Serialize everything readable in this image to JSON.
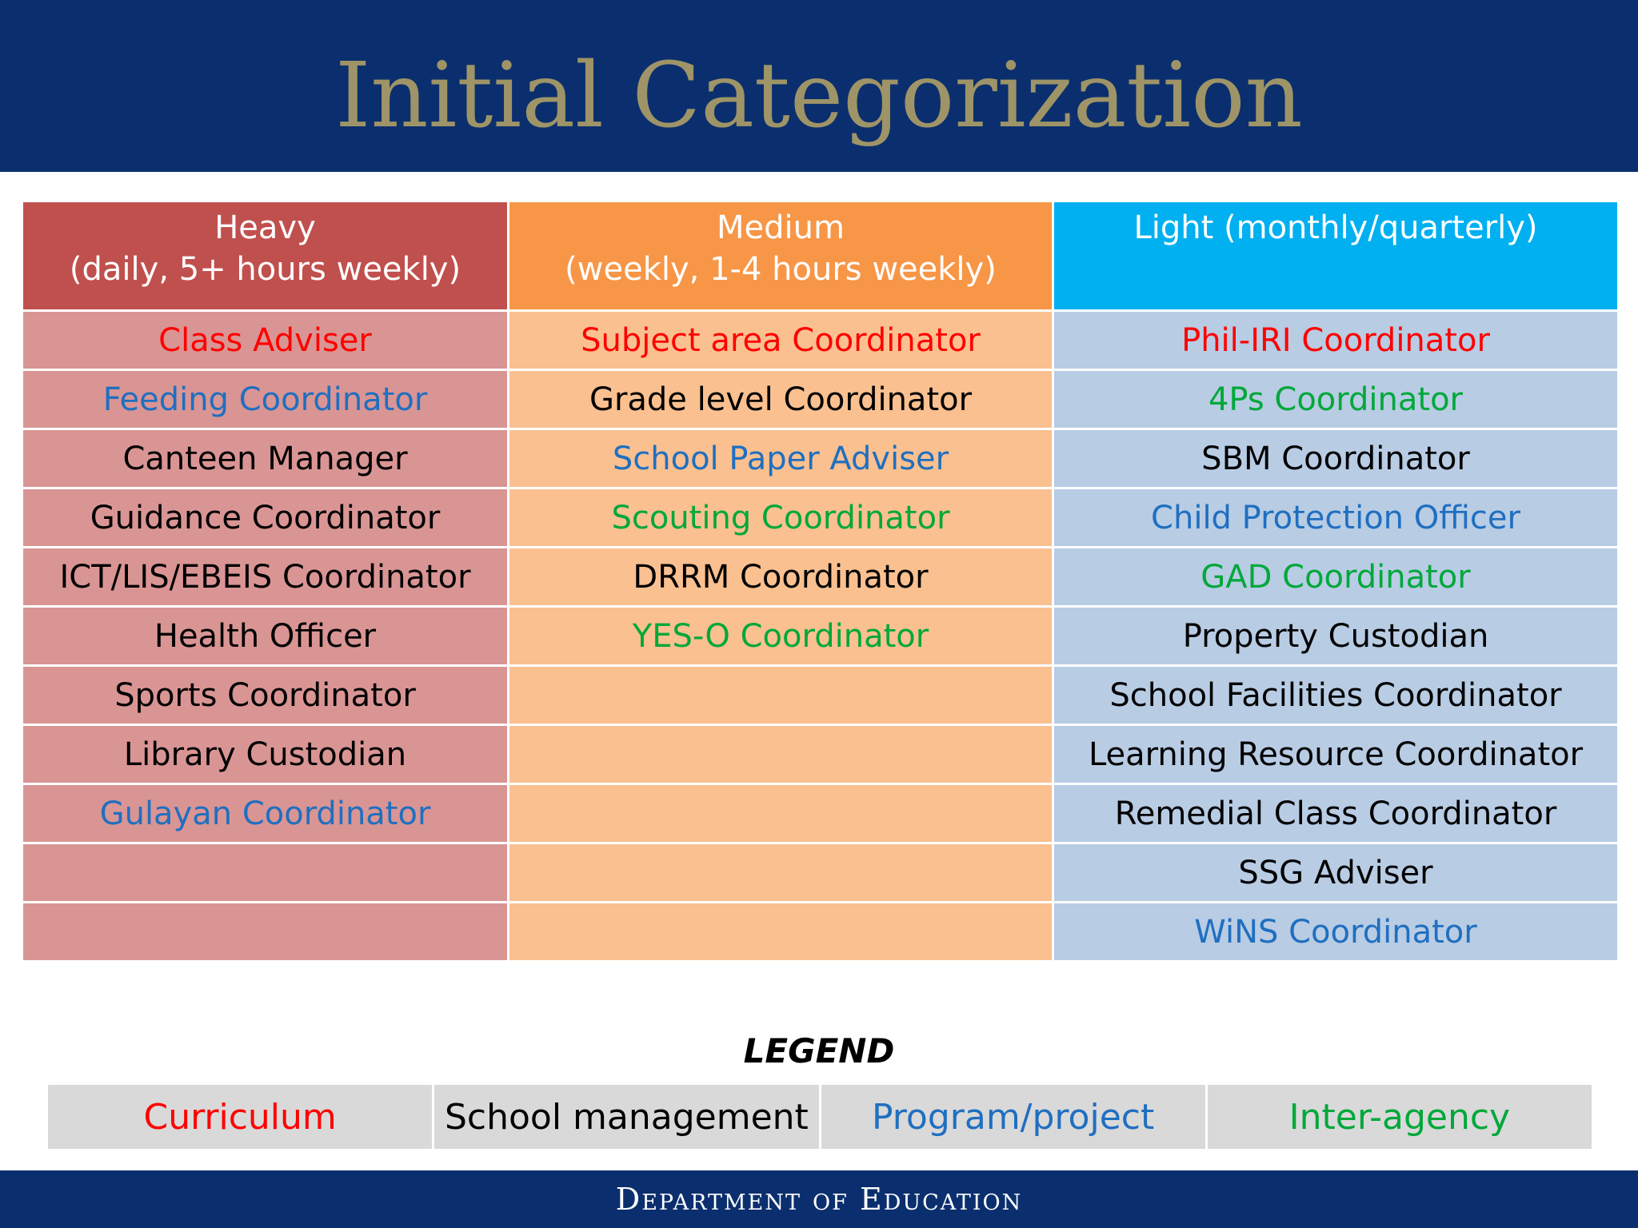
{
  "title": "Initial Categorization",
  "colors": {
    "curriculum": "#ff0000",
    "school_management": "#000000",
    "program_project": "#1f6fc0",
    "inter_agency": "#00a83a"
  },
  "columns": [
    {
      "line1": "Heavy",
      "line2": "(daily, 5+ hours weekly)"
    },
    {
      "line1": "Medium",
      "line2": "(weekly, 1-4 hours weekly)"
    },
    {
      "line1": "Light (monthly/quarterly)",
      "line2": ""
    }
  ],
  "rows": [
    [
      {
        "text": "Class Adviser",
        "cat": "curriculum"
      },
      {
        "text": "Subject area Coordinator",
        "cat": "curriculum"
      },
      {
        "text": "Phil-IRI Coordinator",
        "cat": "curriculum"
      }
    ],
    [
      {
        "text": "Feeding Coordinator",
        "cat": "program_project"
      },
      {
        "text": "Grade level Coordinator",
        "cat": "school_management"
      },
      {
        "text": "4Ps Coordinator",
        "cat": "inter_agency"
      }
    ],
    [
      {
        "text": "Canteen Manager",
        "cat": "school_management"
      },
      {
        "text": "School Paper Adviser",
        "cat": "program_project"
      },
      {
        "text": "SBM Coordinator",
        "cat": "school_management"
      }
    ],
    [
      {
        "text": "Guidance Coordinator",
        "cat": "school_management"
      },
      {
        "text": "Scouting Coordinator",
        "cat": "inter_agency"
      },
      {
        "text": "Child Protection Officer",
        "cat": "program_project"
      }
    ],
    [
      {
        "text": "ICT/LIS/EBEIS Coordinator",
        "cat": "school_management"
      },
      {
        "text": "DRRM Coordinator",
        "cat": "school_management"
      },
      {
        "text": "GAD Coordinator",
        "cat": "inter_agency"
      }
    ],
    [
      {
        "text": "Health Officer",
        "cat": "school_management"
      },
      {
        "text": "YES-O Coordinator",
        "cat": "inter_agency"
      },
      {
        "text": "Property Custodian",
        "cat": "school_management"
      }
    ],
    [
      {
        "text": "Sports Coordinator",
        "cat": "school_management"
      },
      {
        "text": "",
        "cat": "school_management"
      },
      {
        "text": "School Facilities Coordinator",
        "cat": "school_management"
      }
    ],
    [
      {
        "text": "Library Custodian",
        "cat": "school_management"
      },
      {
        "text": "",
        "cat": "school_management"
      },
      {
        "text": "Learning Resource Coordinator",
        "cat": "school_management"
      }
    ],
    [
      {
        "text": "Gulayan Coordinator",
        "cat": "program_project"
      },
      {
        "text": "",
        "cat": "school_management"
      },
      {
        "text": "Remedial Class Coordinator",
        "cat": "school_management"
      }
    ],
    [
      {
        "text": "",
        "cat": "school_management"
      },
      {
        "text": "",
        "cat": "school_management"
      },
      {
        "text": "SSG Adviser",
        "cat": "school_management"
      }
    ],
    [
      {
        "text": "",
        "cat": "school_management"
      },
      {
        "text": "",
        "cat": "school_management"
      },
      {
        "text": "WiNS Coordinator",
        "cat": "program_project"
      }
    ]
  ],
  "legend": {
    "title": "LEGEND",
    "items": [
      {
        "text": "Curriculum",
        "cat": "curriculum"
      },
      {
        "text": "School management",
        "cat": "school_management"
      },
      {
        "text": "Program/project",
        "cat": "program_project"
      },
      {
        "text": "Inter-agency",
        "cat": "inter_agency"
      }
    ]
  },
  "footer": "Department of Education"
}
